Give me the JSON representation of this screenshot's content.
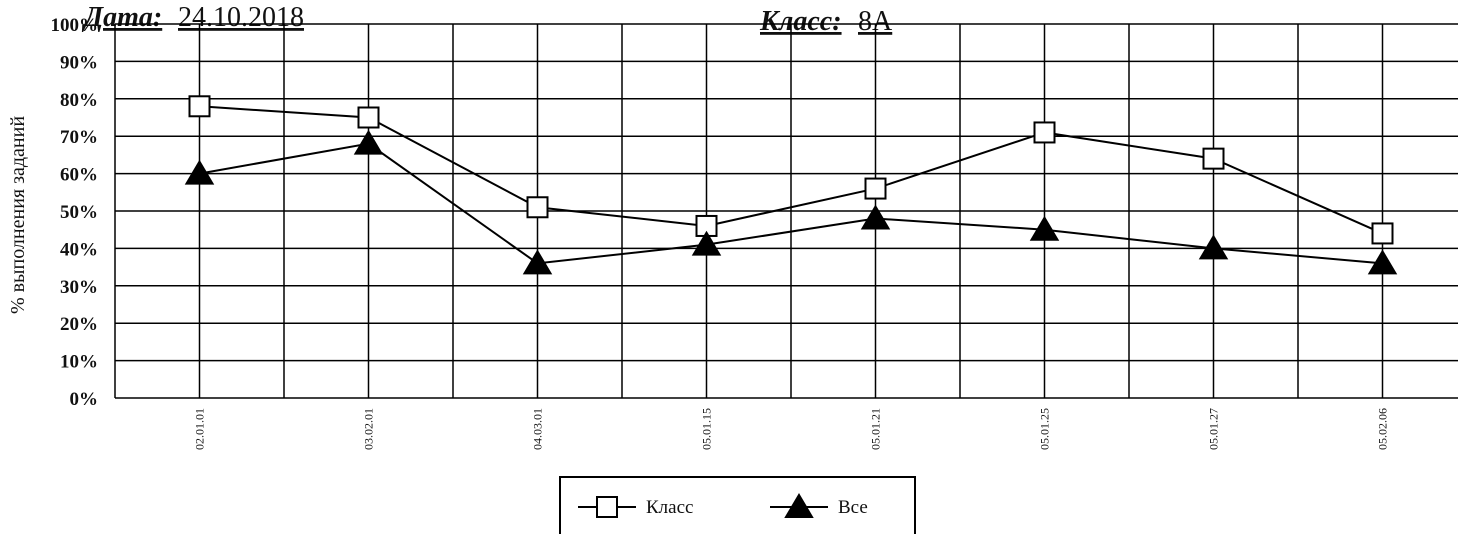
{
  "chart_data": {
    "type": "line",
    "date_label": "Дата:",
    "date": "24.10.2018",
    "class_label": "Класс:",
    "class": "8А",
    "y_label": "% выполнения заданий",
    "categories": [
      "02.01.01",
      "03.02.01",
      "04.03.01",
      "05.01.15",
      "05.01.21",
      "05.01.25",
      "05.01.27",
      "05.02.06"
    ],
    "series": [
      {
        "name": "Класс",
        "color": "#000000",
        "marker": "square",
        "marker_fill": "#ffffff",
        "values": [
          78,
          75,
          51,
          46,
          56,
          71,
          64,
          44
        ]
      },
      {
        "name": "Все",
        "color": "#000000",
        "marker": "triangle",
        "marker_fill": "#000000",
        "values": [
          60,
          68,
          36,
          41,
          48,
          45,
          40,
          36
        ]
      }
    ],
    "ylim": [
      0,
      100
    ],
    "yticks": [
      {
        "value": 0,
        "label": "0%"
      },
      {
        "value": 10,
        "label": "10%"
      },
      {
        "value": 20,
        "label": "20%"
      },
      {
        "value": 30,
        "label": "30%"
      },
      {
        "value": 40,
        "label": "40%"
      },
      {
        "value": 50,
        "label": "50%"
      },
      {
        "value": 60,
        "label": "60%"
      },
      {
        "value": 70,
        "label": "70%"
      },
      {
        "value": 80,
        "label": "80%"
      },
      {
        "value": 90,
        "label": "90%"
      },
      {
        "value": 100,
        "label": "100%"
      }
    ],
    "grid": true,
    "legend": "bottom"
  }
}
